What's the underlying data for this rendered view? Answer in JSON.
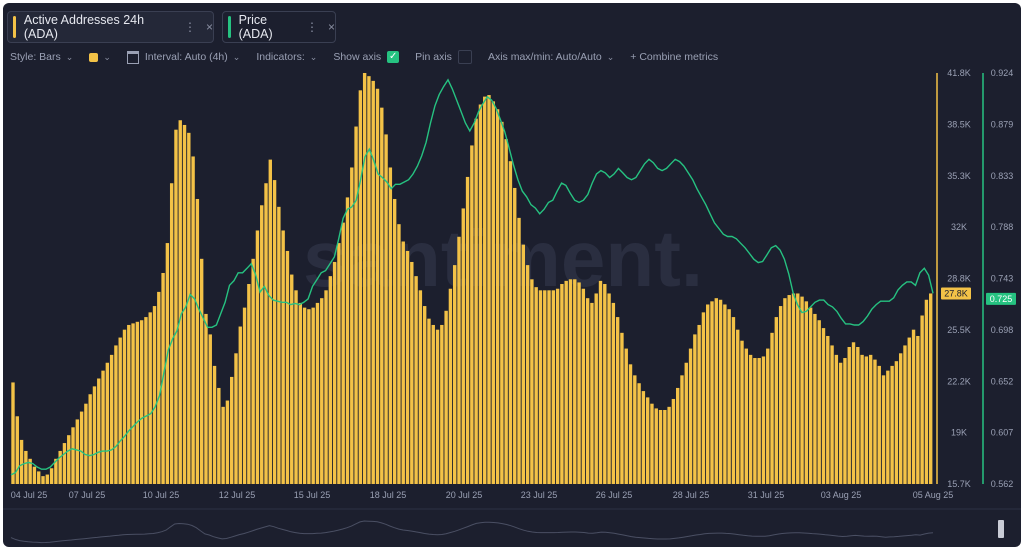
{
  "tabs": [
    {
      "label": "Active Addresses 24h (ADA)",
      "color": "#f3c247",
      "more": "⋮",
      "close": "×"
    },
    {
      "label": "Price (ADA)",
      "color": "#26c281",
      "more": "⋮",
      "close": "×"
    }
  ],
  "toolbar": {
    "style_label": "Style: Bars",
    "interval_label": "Interval: Auto (4h)",
    "indicators_label": "Indicators:",
    "show_axis_label": "Show axis",
    "pin_axis_label": "Pin axis",
    "axis_max_min_label": "Axis max/min: Auto/Auto",
    "combine_label": "+ Combine metrics"
  },
  "watermark": "santiment.",
  "chart_data": {
    "type": "bar",
    "x_ticks": [
      "04 Jul 25",
      "07 Jul 25",
      "10 Jul 25",
      "12 Jul 25",
      "15 Jul 25",
      "18 Jul 25",
      "20 Jul 25",
      "23 Jul 25",
      "26 Jul 25",
      "28 Jul 25",
      "31 Jul 25",
      "03 Aug 25",
      "05 Aug 25"
    ],
    "left_axis": {
      "ticks": [
        "41.8K",
        "38.5K",
        "35.3K",
        "32K",
        "28.8K",
        "25.5K",
        "22.2K",
        "19K",
        "15.7K"
      ],
      "ylim": [
        15700,
        41800
      ],
      "color": "#f3c247"
    },
    "right_axis": {
      "ticks": [
        "0.924",
        "0.879",
        "0.833",
        "0.788",
        "0.743",
        "0.698",
        "0.652",
        "0.607",
        "0.562"
      ],
      "ylim": [
        0.562,
        0.924
      ],
      "color": "#26c281"
    },
    "current_labels": {
      "left": "27.8K",
      "right": "0.725"
    },
    "series": [
      {
        "name": "Active Addresses 24h (ADA)",
        "kind": "bar",
        "color": "#f3c247",
        "values": [
          22150,
          20000,
          18500,
          17800,
          17300,
          16800,
          16500,
          16200,
          16300,
          16700,
          17300,
          17800,
          18300,
          18800,
          19300,
          19800,
          20300,
          20800,
          21400,
          21900,
          22400,
          22900,
          23400,
          23900,
          24500,
          25000,
          25500,
          25800,
          25900,
          26000,
          26100,
          26300,
          26600,
          27000,
          27900,
          29100,
          31000,
          34800,
          38200,
          38800,
          38500,
          38000,
          36500,
          33800,
          30000,
          26500,
          25200,
          23200,
          21800,
          20600,
          21000,
          22500,
          24000,
          25700,
          26900,
          28400,
          30000,
          31800,
          33400,
          34800,
          36300,
          35000,
          33300,
          31800,
          30500,
          29000,
          28000,
          27200,
          26900,
          26800,
          26900,
          27200,
          27500,
          28000,
          28900,
          29800,
          31000,
          32300,
          33900,
          35800,
          38400,
          40700,
          41800,
          41600,
          41300,
          40800,
          39600,
          37900,
          35800,
          33800,
          32200,
          31100,
          30500,
          29800,
          28900,
          28000,
          27000,
          26200,
          25800,
          25500,
          25800,
          26700,
          28100,
          29600,
          31400,
          33200,
          35200,
          37200,
          38900,
          39800,
          40300,
          40400,
          40000,
          39500,
          38700,
          37600,
          36200,
          34500,
          32600,
          30900,
          29600,
          28700,
          28200,
          28000,
          28000,
          28000,
          28000,
          28100,
          28400,
          28600,
          28700,
          28700,
          28500,
          28100,
          27500,
          27200,
          27800,
          28600,
          28400,
          27800,
          27200,
          26300,
          25300,
          24300,
          23300,
          22600,
          22100,
          21600,
          21200,
          20800,
          20500,
          20400,
          20400,
          20600,
          21100,
          21800,
          22600,
          23400,
          24300,
          25200,
          25800,
          26600,
          27100,
          27300,
          27500,
          27400,
          27100,
          26800,
          26300,
          25500,
          24800,
          24300,
          23900,
          23700,
          23700,
          23800,
          24300,
          25300,
          26300,
          27000,
          27500,
          27700,
          27800,
          27800,
          27600,
          27300,
          26900,
          26500,
          26100,
          25600,
          25100,
          24500,
          23900,
          23400,
          23700,
          24400,
          24700,
          24400,
          23900,
          23800,
          23900,
          23600,
          23200,
          22600,
          22900,
          23200,
          23500,
          24000,
          24500,
          25000,
          25500,
          25100,
          26400,
          27400,
          27800
        ]
      },
      {
        "name": "Price (ADA)",
        "kind": "line",
        "color": "#26c281",
        "values": [
          0.57,
          0.572,
          0.578,
          0.58,
          0.581,
          0.58,
          0.577,
          0.575,
          0.575,
          0.577,
          0.581,
          0.585,
          0.588,
          0.591,
          0.593,
          0.592,
          0.591,
          0.588,
          0.587,
          0.588,
          0.59,
          0.591,
          0.591,
          0.592,
          0.595,
          0.6,
          0.604,
          0.609,
          0.613,
          0.617,
          0.62,
          0.622,
          0.624,
          0.63,
          0.64,
          0.66,
          0.68,
          0.69,
          0.697,
          0.712,
          0.718,
          0.729,
          0.725,
          0.716,
          0.708,
          0.7,
          0.7,
          0.702,
          0.712,
          0.722,
          0.737,
          0.741,
          0.748,
          0.748,
          0.752,
          0.756,
          0.746,
          0.731,
          0.736,
          0.728,
          0.724,
          0.723,
          0.722,
          0.722,
          0.72,
          0.721,
          0.72,
          0.722,
          0.725,
          0.736,
          0.742,
          0.748,
          0.75,
          0.756,
          0.762,
          0.778,
          0.796,
          0.804,
          0.806,
          0.812,
          0.83,
          0.85,
          0.857,
          0.847,
          0.835,
          0.832,
          0.828,
          0.822,
          0.826,
          0.826,
          0.828,
          0.83,
          0.835,
          0.842,
          0.851,
          0.863,
          0.88,
          0.895,
          0.905,
          0.912,
          0.918,
          0.91,
          0.9,
          0.89,
          0.88,
          0.873,
          0.88,
          0.89,
          0.897,
          0.903,
          0.9,
          0.893,
          0.883,
          0.872,
          0.858,
          0.843,
          0.83,
          0.82,
          0.815,
          0.808,
          0.805,
          0.8,
          0.804,
          0.81,
          0.812,
          0.82,
          0.827,
          0.825,
          0.818,
          0.812,
          0.81,
          0.812,
          0.817,
          0.827,
          0.835,
          0.838,
          0.836,
          0.832,
          0.835,
          0.84,
          0.836,
          0.832,
          0.83,
          0.832,
          0.838,
          0.844,
          0.848,
          0.845,
          0.84,
          0.838,
          0.84,
          0.844,
          0.848,
          0.846,
          0.842,
          0.836,
          0.83,
          0.822,
          0.815,
          0.808,
          0.8,
          0.792,
          0.787,
          0.782,
          0.78,
          0.78,
          0.778,
          0.774,
          0.77,
          0.765,
          0.76,
          0.757,
          0.758,
          0.764,
          0.77,
          0.772,
          0.768,
          0.76,
          0.747,
          0.73,
          0.72,
          0.713,
          0.714,
          0.718,
          0.722,
          0.724,
          0.724,
          0.72,
          0.718,
          0.714,
          0.708,
          0.703,
          0.703,
          0.702,
          0.702,
          0.705,
          0.71,
          0.716,
          0.72,
          0.723,
          0.723,
          0.723,
          0.726,
          0.733,
          0.737,
          0.74,
          0.74,
          0.737,
          0.748,
          0.752,
          0.746,
          0.73
        ]
      }
    ],
    "grid": false,
    "legend": "tabs-top-left"
  }
}
